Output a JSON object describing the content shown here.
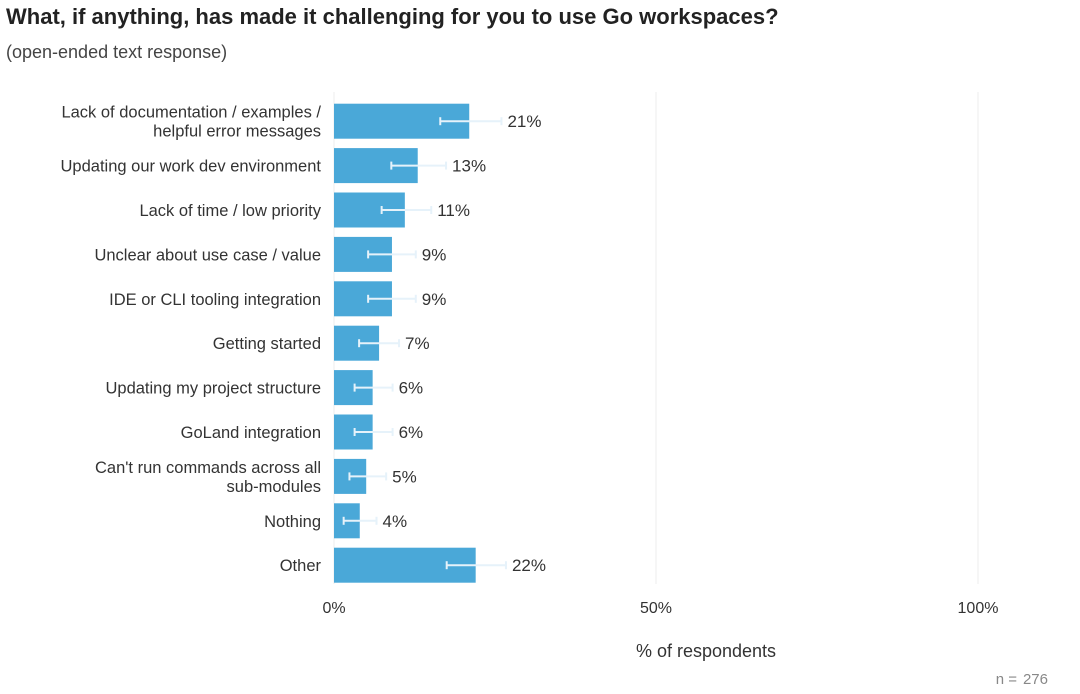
{
  "title": "What, if anything, has made it challenging for you to use Go workspaces?",
  "subtitle": "(open-ended text response)",
  "footnote": {
    "label": "n =",
    "value": "276"
  },
  "chart_data": {
    "type": "bar",
    "orientation": "horizontal",
    "categories": [
      [
        "Lack of documentation / examples /",
        "helpful error messages"
      ],
      [
        "Updating our work dev environment"
      ],
      [
        "Lack of time / low priority"
      ],
      [
        "Unclear about use case / value"
      ],
      [
        "IDE or CLI tooling integration"
      ],
      [
        "Getting started"
      ],
      [
        "Updating my project structure"
      ],
      [
        "GoLand integration"
      ],
      [
        "Can't run commands across all",
        "sub-modules"
      ],
      [
        "Nothing"
      ],
      [
        "Other"
      ]
    ],
    "values": [
      21,
      13,
      11,
      9,
      9,
      7,
      6,
      6,
      5,
      4,
      22
    ],
    "value_labels": [
      "21%",
      "13%",
      "11%",
      "9%",
      "9%",
      "7%",
      "6%",
      "6%",
      "5%",
      "4%",
      "22%"
    ],
    "error_bars": [
      [
        16.5,
        26
      ],
      [
        8.9,
        17.4
      ],
      [
        7.4,
        15.1
      ],
      [
        5.3,
        12.7
      ],
      [
        5.3,
        12.7
      ],
      [
        3.9,
        10.1
      ],
      [
        3.2,
        9.1
      ],
      [
        3.2,
        9.1
      ],
      [
        2.4,
        8.1
      ],
      [
        1.5,
        6.6
      ],
      [
        17.5,
        26.7
      ]
    ],
    "xlabel": "% of respondents",
    "xlim": [
      0,
      100
    ],
    "xticks": [
      0,
      50,
      100
    ],
    "xtick_labels": [
      "0%",
      "50%",
      "100%"
    ],
    "grid": true,
    "colors": {
      "bar": "#4aa8d8",
      "error_bar": "#e6f2fa",
      "grid": "#f0f0f0",
      "text": "#333333"
    }
  }
}
